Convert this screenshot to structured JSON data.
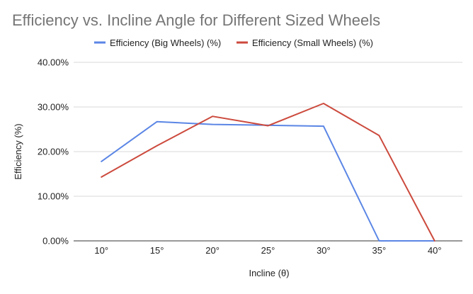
{
  "chart_data": {
    "type": "line",
    "title": "Efficiency vs. Incline Angle for Different Sized Wheels",
    "xlabel": "Incline (θ)",
    "ylabel": "Efficiency (%)",
    "categories": [
      "10°",
      "15°",
      "20°",
      "25°",
      "30°",
      "35°",
      "40°"
    ],
    "ylim": [
      0,
      40
    ],
    "y_ticks": [
      0,
      10,
      20,
      30,
      40
    ],
    "y_tick_labels": [
      "0.00%",
      "10.00%",
      "20.00%",
      "30.00%",
      "40.00%"
    ],
    "grid": true,
    "legend_position": "top",
    "series": [
      {
        "name": "Efficiency (Big Wheels) (%)",
        "color": "#5b86e5",
        "values": [
          17.8,
          26.7,
          26.1,
          25.9,
          25.7,
          0.0,
          0.0
        ]
      },
      {
        "name": "Efficiency (Small Wheels) (%)",
        "color": "#cc4a3d",
        "values": [
          14.3,
          21.3,
          27.9,
          25.8,
          30.8,
          23.6,
          0.0
        ]
      }
    ]
  }
}
